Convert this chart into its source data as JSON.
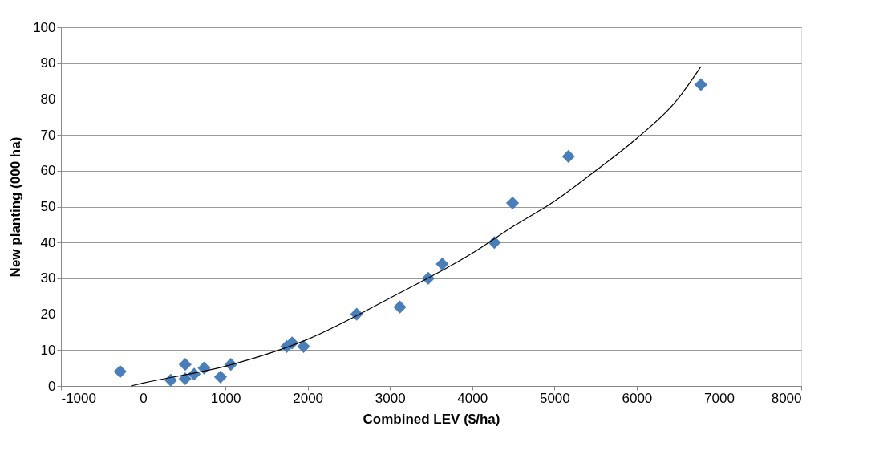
{
  "chart_data": {
    "type": "scatter",
    "xlabel": "Combined LEV ($/ha)",
    "ylabel": "New planting (000 ha)",
    "xlim": [
      -1000,
      8000
    ],
    "xticks": [
      -1000,
      0,
      1000,
      2000,
      3000,
      4000,
      5000,
      6000,
      7000,
      8000
    ],
    "ylim": [
      0,
      100
    ],
    "yticks": [
      0,
      10,
      20,
      30,
      40,
      50,
      60,
      70,
      80,
      90,
      100
    ],
    "grid": "y",
    "marker": "diamond",
    "series": [
      {
        "color": "#4a7ebb",
        "x": [
          -280,
          335,
          510,
          510,
          620,
          740,
          940,
          1065,
          1745,
          1810,
          1950,
          2595,
          3120,
          3465,
          3635,
          4270,
          4490,
          5170,
          6780
        ],
        "values": [
          4,
          1.6,
          6,
          2,
          3.3,
          5,
          2.5,
          6,
          11,
          12,
          11,
          20,
          22,
          30,
          34,
          40,
          51,
          64,
          84
        ]
      },
      {
        "type": "line",
        "marker": "none",
        "color": "#000000",
        "line_style": "solid",
        "x": [
          -150,
          0,
          1000,
          2000,
          3000,
          4000,
          4500,
          5000,
          5500,
          6000,
          6500,
          6780
        ],
        "values": [
          0,
          0.8,
          5.5,
          13,
          24.5,
          37,
          44.5,
          51.5,
          60,
          69,
          80,
          89
        ]
      }
    ]
  }
}
